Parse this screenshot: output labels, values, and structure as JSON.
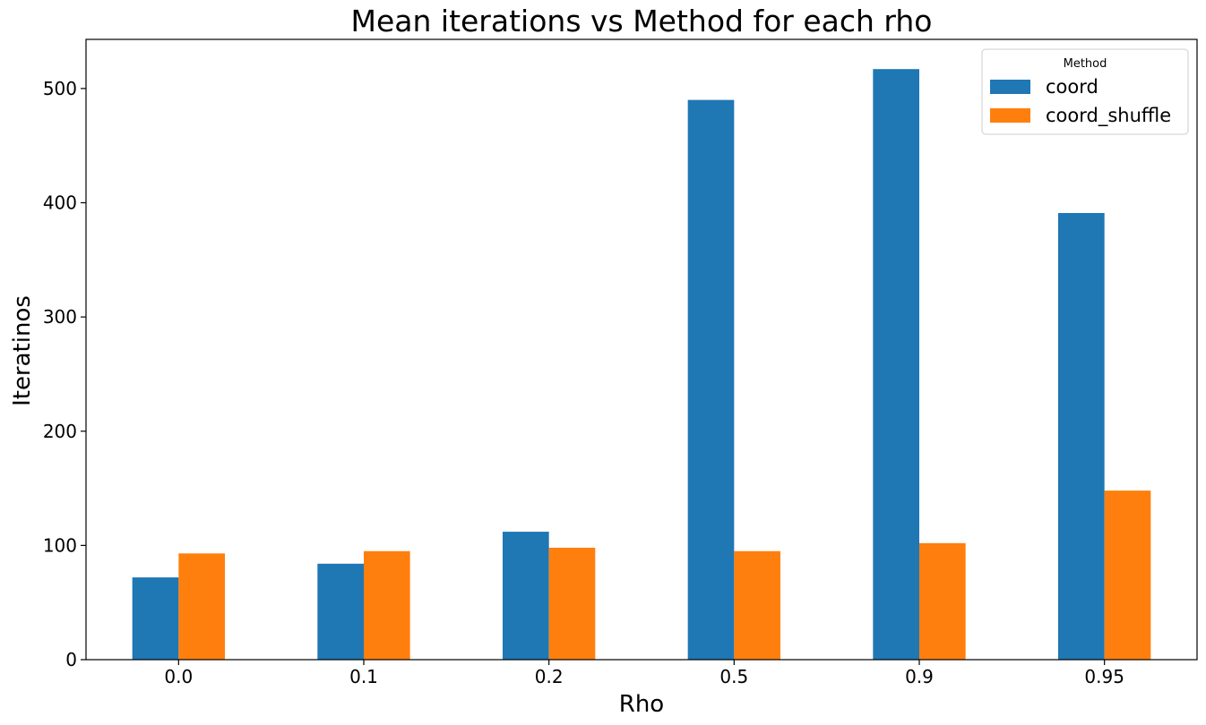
{
  "chart_data": {
    "type": "bar",
    "title": "Mean iterations vs Method for each rho",
    "xlabel": "Rho",
    "ylabel": "Iteratinos",
    "categories": [
      "0.0",
      "0.1",
      "0.2",
      "0.5",
      "0.9",
      "0.95"
    ],
    "series": [
      {
        "name": "coord",
        "color": "#1f77b4",
        "values": [
          72,
          84,
          112,
          490,
          517,
          391
        ]
      },
      {
        "name": "coord_shuffle",
        "color": "#ff7f0e",
        "values": [
          93,
          95,
          98,
          95,
          102,
          148
        ]
      }
    ],
    "ylim": [
      0,
      543
    ],
    "yticks": [
      0,
      100,
      200,
      300,
      400,
      500
    ],
    "legend": {
      "title": "Method",
      "position": "top-right"
    },
    "grid": false
  }
}
